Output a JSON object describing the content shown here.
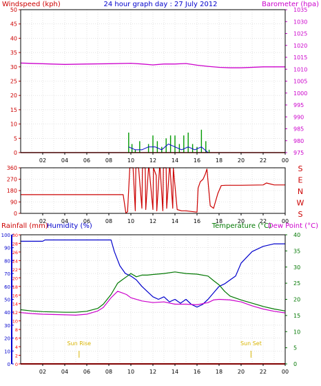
{
  "title": "24 hour graph day : 27 July 2012",
  "colors": {
    "windspeed": "#cc0000",
    "barometer": "#cc00cc",
    "rain": "#ff0000",
    "humidity": "#0000cc",
    "temperature": "#007700",
    "dewpoint": "#cc00cc",
    "gust": "#009900",
    "avgwind": "#0000cc",
    "direction": "#cc0000",
    "axis": "#000000",
    "sun": "#d8b400"
  },
  "chart_data": [
    {
      "type": "line",
      "panel": "wind",
      "ylabel_left": "Windspeed (kph)",
      "ylabel_right": "Barometer (hpa)",
      "ylim_left": [
        0,
        50
      ],
      "ylim_right": [
        975,
        1035
      ],
      "yticks_left": [
        "0",
        "5",
        "10",
        "15",
        "20",
        "25",
        "30",
        "35",
        "40",
        "45",
        "50"
      ],
      "yticks_right": [
        "975",
        "980",
        "985",
        "990",
        "995",
        "1000",
        "1005",
        "1010",
        "1015",
        "1020",
        "1025",
        "1030",
        "1035"
      ],
      "xticks": [
        "02",
        "04",
        "06",
        "08",
        "10",
        "12",
        "14",
        "16",
        "18",
        "20",
        "22",
        "00"
      ],
      "grid": true,
      "series": [
        {
          "name": "Barometer (hpa)",
          "x": [
            0,
            2,
            4,
            6,
            8,
            10,
            11,
            12,
            13,
            14,
            15,
            16,
            17,
            18,
            19,
            20,
            22,
            24
          ],
          "values": [
            1012.6,
            1012.3,
            1012.0,
            1012.2,
            1012.3,
            1012.5,
            1012.2,
            1011.8,
            1012.2,
            1012.2,
            1012.4,
            1011.7,
            1011.2,
            1010.8,
            1010.6,
            1010.6,
            1011.0,
            1011.0
          ]
        },
        {
          "name": "Wind gust",
          "x": [
            9.8,
            10.1,
            10.4,
            10.8,
            11.2,
            11.6,
            12.0,
            12.4,
            12.8,
            13.2,
            13.6,
            14.0,
            14.4,
            14.8,
            15.2,
            15.6,
            16.0,
            16.4,
            16.8,
            17.1
          ],
          "values": [
            7,
            3,
            1,
            4,
            0,
            3,
            6,
            4,
            2,
            5,
            6,
            6,
            3,
            6,
            7,
            3,
            2,
            8,
            4,
            1
          ]
        },
        {
          "name": "Average wind",
          "x": [
            9.8,
            10.4,
            11.0,
            11.6,
            12.2,
            12.8,
            13.4,
            14.0,
            14.6,
            15.2,
            15.8,
            16.4,
            17.0
          ],
          "values": [
            2,
            1,
            1,
            2,
            2,
            1,
            3,
            2,
            1,
            2,
            1,
            2,
            0
          ]
        }
      ]
    },
    {
      "type": "line",
      "panel": "direction",
      "ylim": [
        0,
        360
      ],
      "yticks": [
        "0",
        "90",
        "180",
        "270",
        "360"
      ],
      "compass": [
        "S",
        "E",
        "N",
        "W",
        "S"
      ],
      "xticks": [
        "02",
        "04",
        "06",
        "08",
        "10",
        "12",
        "14",
        "16",
        "18",
        "20",
        "22",
        "00"
      ],
      "grid": true,
      "series": [
        {
          "name": "Wind direction",
          "x": [
            0,
            9.0,
            9.3,
            9.55,
            9.7,
            9.9,
            10.2,
            10.4,
            10.45,
            10.7,
            11.0,
            11.05,
            11.3,
            11.35,
            11.6,
            11.65,
            12.0,
            12.05,
            12.3,
            12.35,
            12.6,
            12.65,
            12.9,
            12.95,
            13.2,
            13.25,
            13.5,
            13.55,
            13.8,
            13.85,
            14.2,
            14.6,
            15.0,
            15.5,
            16.0,
            16.1,
            16.3,
            16.55,
            16.75,
            16.9,
            17.2,
            17.5,
            17.9,
            18.2,
            18.6,
            20.0,
            22.0,
            22.3,
            23.0,
            24.0
          ],
          "values": [
            148,
            148,
            148,
            0,
            15,
            360,
            360,
            20,
            360,
            360,
            40,
            360,
            360,
            30,
            360,
            360,
            30,
            360,
            300,
            20,
            360,
            360,
            20,
            360,
            360,
            40,
            360,
            360,
            40,
            360,
            30,
            20,
            20,
            15,
            10,
            200,
            250,
            270,
            310,
            350,
            60,
            40,
            160,
            220,
            222,
            222,
            225,
            240,
            225,
            225
          ]
        }
      ]
    },
    {
      "type": "line",
      "panel": "climate",
      "ylabel_rain": "Rainfall (mm)",
      "ylabel_humidity": "Humidity (%)",
      "ylabel_temp": "Temperature (°C)",
      "ylabel_dew": "Dew Point (°C)",
      "ylim_humidity": [
        0,
        100
      ],
      "ylim_rain": [
        0,
        30
      ],
      "ylim_temp": [
        0,
        40
      ],
      "yticks_humidity": [
        "0",
        "10",
        "20",
        "30",
        "40",
        "50",
        "60",
        "70",
        "80",
        "90",
        "100"
      ],
      "yticks_rain": [
        "0",
        "2",
        "4",
        "6",
        "8",
        "10",
        "12",
        "14",
        "16",
        "18",
        "20",
        "22",
        "24",
        "26",
        "28",
        "30"
      ],
      "yticks_temp": [
        "0",
        "5",
        "10",
        "15",
        "20",
        "25",
        "30",
        "35",
        "40"
      ],
      "xticks": [
        "02",
        "04",
        "06",
        "08",
        "10",
        "12",
        "14",
        "16",
        "18",
        "20",
        "22",
        "00"
      ],
      "annotations": [
        "Sun Rise",
        "Sun Set"
      ],
      "annotation_x": [
        5.3,
        20.9
      ],
      "grid": true,
      "series": [
        {
          "name": "Rainfall (mm)",
          "x": [
            0,
            24
          ],
          "values": [
            0,
            0
          ]
        },
        {
          "name": "Humidity (%)",
          "x": [
            0,
            1,
            2,
            2.2,
            4,
            6,
            7,
            8.2,
            8.5,
            9.0,
            9.5,
            10,
            10.5,
            11,
            11.5,
            12,
            12.5,
            13,
            13.5,
            14,
            14.5,
            15,
            15.5,
            16,
            16.5,
            17,
            17.5,
            18,
            18.5,
            19,
            19.5,
            20,
            21,
            22,
            23,
            24
          ],
          "values": [
            95,
            95,
            95,
            96,
            96,
            96,
            96,
            96,
            87,
            76,
            70,
            68,
            65,
            60,
            56,
            52,
            50,
            52,
            48,
            50,
            47,
            50,
            46,
            44,
            46,
            50,
            55,
            60,
            62,
            65,
            68,
            78,
            87,
            91,
            93,
            93
          ]
        },
        {
          "name": "Temperature (°C)",
          "x": [
            0,
            1,
            2,
            4,
            5,
            6,
            7,
            7.5,
            8.2,
            8.8,
            9.2,
            9.6,
            10,
            10.5,
            11,
            11.5,
            12,
            13,
            14,
            15,
            16,
            17,
            17.5,
            18,
            18.5,
            19,
            20,
            21,
            22,
            23,
            24
          ],
          "values": [
            16.8,
            16.4,
            16.2,
            16.0,
            16.0,
            16.3,
            17.2,
            18.5,
            21.5,
            25,
            26,
            27,
            28,
            27,
            27.5,
            27.5,
            27.7,
            28.0,
            28.5,
            28.0,
            27.8,
            27.2,
            25.8,
            24.5,
            22.5,
            21.0,
            19.8,
            18.8,
            17.8,
            17.0,
            16.4
          ]
        },
        {
          "name": "Dew Point (°C)",
          "x": [
            0,
            1,
            2,
            4,
            5,
            6,
            7,
            7.5,
            8.2,
            8.8,
            9.2,
            9.6,
            10,
            11,
            12,
            13,
            14,
            15,
            16,
            17,
            17.5,
            18,
            19,
            20,
            21,
            22,
            23,
            24
          ],
          "values": [
            15.9,
            15.6,
            15.4,
            15.2,
            15.1,
            15.4,
            16.4,
            17.5,
            20.5,
            22.5,
            22.0,
            21.5,
            20.5,
            19.5,
            19.0,
            19.2,
            18.5,
            18.5,
            18.3,
            19.0,
            19.8,
            20.0,
            19.8,
            19.2,
            18.0,
            17.0,
            16.3,
            15.8
          ]
        }
      ]
    }
  ]
}
